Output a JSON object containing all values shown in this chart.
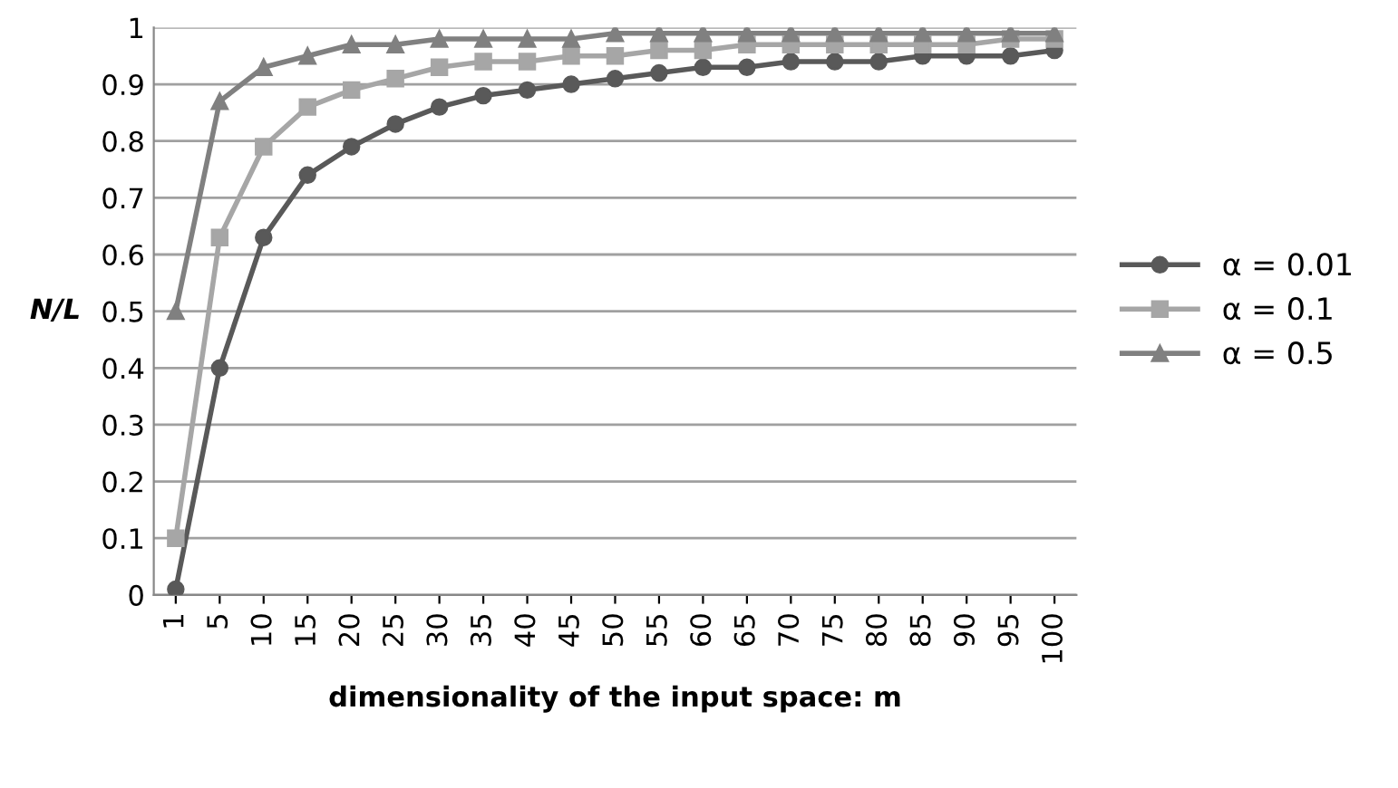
{
  "chart_data": {
    "type": "line",
    "xlabel": "dimensionality of the input space: m",
    "ylabel": "N/L",
    "categories": [
      "1",
      "5",
      "10",
      "15",
      "20",
      "25",
      "30",
      "35",
      "40",
      "45",
      "50",
      "55",
      "60",
      "65",
      "70",
      "75",
      "80",
      "85",
      "90",
      "95",
      "100"
    ],
    "series": [
      {
        "name": "α = 0.01",
        "color": "#595959",
        "marker": "circle",
        "values": [
          0.01,
          0.4,
          0.63,
          0.74,
          0.79,
          0.83,
          0.86,
          0.88,
          0.89,
          0.9,
          0.91,
          0.92,
          0.93,
          0.93,
          0.94,
          0.94,
          0.94,
          0.95,
          0.95,
          0.95,
          0.96
        ]
      },
      {
        "name": "α = 0.1",
        "color": "#a6a6a6",
        "marker": "square",
        "values": [
          0.1,
          0.63,
          0.79,
          0.86,
          0.89,
          0.91,
          0.93,
          0.94,
          0.94,
          0.95,
          0.95,
          0.96,
          0.96,
          0.97,
          0.97,
          0.97,
          0.97,
          0.97,
          0.97,
          0.98,
          0.98
        ]
      },
      {
        "name": "α = 0.5",
        "color": "#808080",
        "marker": "triangle",
        "values": [
          0.5,
          0.87,
          0.93,
          0.95,
          0.97,
          0.97,
          0.98,
          0.98,
          0.98,
          0.98,
          0.99,
          0.99,
          0.99,
          0.99,
          0.99,
          0.99,
          0.99,
          0.99,
          0.99,
          0.99,
          0.99
        ]
      }
    ],
    "ylim": [
      0,
      1
    ],
    "yticks": [
      0,
      0.1,
      0.2,
      0.3,
      0.4,
      0.5,
      0.6,
      0.7,
      0.8,
      0.9,
      1
    ],
    "grid": "y",
    "legend": "right",
    "line_style": "solid"
  }
}
